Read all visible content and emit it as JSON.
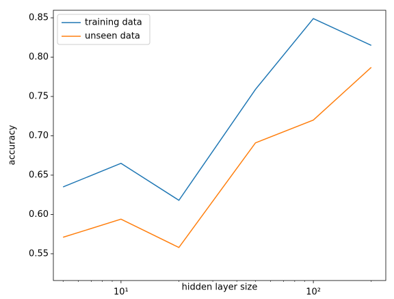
{
  "chart_data": {
    "type": "line",
    "xlabel": "hidden layer size",
    "ylabel": "accuracy",
    "x": [
      5,
      10,
      20,
      50,
      100,
      200
    ],
    "series": [
      {
        "name": "training data",
        "color": "#1f77b4",
        "values": [
          0.635,
          0.665,
          0.618,
          0.759,
          0.849,
          0.815
        ]
      },
      {
        "name": "unseen data",
        "color": "#ff7f0e",
        "values": [
          0.571,
          0.594,
          0.558,
          0.691,
          0.72,
          0.787
        ]
      }
    ],
    "xscale": "log",
    "xlim": [
      4.45,
      238
    ],
    "xticks": [
      {
        "value": 10,
        "label": "10¹"
      },
      {
        "value": 100,
        "label": "10²"
      }
    ],
    "xminorticks": [
      5,
      6,
      7,
      8,
      9,
      20,
      30,
      40,
      50,
      60,
      70,
      80,
      90,
      200
    ],
    "ylim": [
      0.516,
      0.8596
    ],
    "yticks": [
      0.55,
      {
        "value": 0.6,
        "label": "0.60"
      },
      0.65,
      {
        "value": 0.7,
        "label": "0.70"
      },
      0.75,
      {
        "value": 0.8,
        "label": "0.80"
      },
      0.85
    ],
    "legend": "upper left"
  }
}
